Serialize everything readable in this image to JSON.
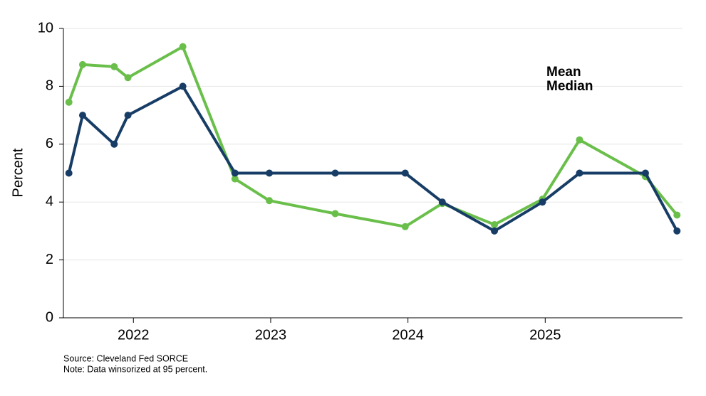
{
  "chart_data": {
    "type": "line",
    "y_label": "Percent",
    "notes": [
      "Source: Cleveland Fed SORCE",
      "Note: Data winsorized at 95 percent."
    ],
    "x": [
      2021.53,
      2021.63,
      2021.86,
      2021.96,
      2022.36,
      2022.74,
      2022.99,
      2023.47,
      2023.98,
      2024.25,
      2024.63,
      2024.98,
      2025.25,
      2025.73,
      2025.96
    ],
    "series": [
      {
        "name": "Mean",
        "color": "#6abf4b",
        "values": [
          7.45,
          8.75,
          8.68,
          8.3,
          9.37,
          4.8,
          4.05,
          3.6,
          3.15,
          3.95,
          3.22,
          4.1,
          6.15,
          4.88,
          3.55
        ]
      },
      {
        "name": "Median",
        "color": "#173d66",
        "values": [
          5,
          7,
          6,
          7,
          8,
          5,
          5,
          5,
          5,
          4,
          3,
          4,
          5,
          5,
          3
        ]
      }
    ],
    "xlim": [
      2021.49,
      2026.0
    ],
    "xticks": [
      2022,
      2023,
      2024,
      2025
    ],
    "ylim": [
      0,
      10
    ],
    "yticks": [
      0,
      2,
      4,
      6,
      8,
      10
    ],
    "grid": true,
    "legend": "upper right"
  }
}
